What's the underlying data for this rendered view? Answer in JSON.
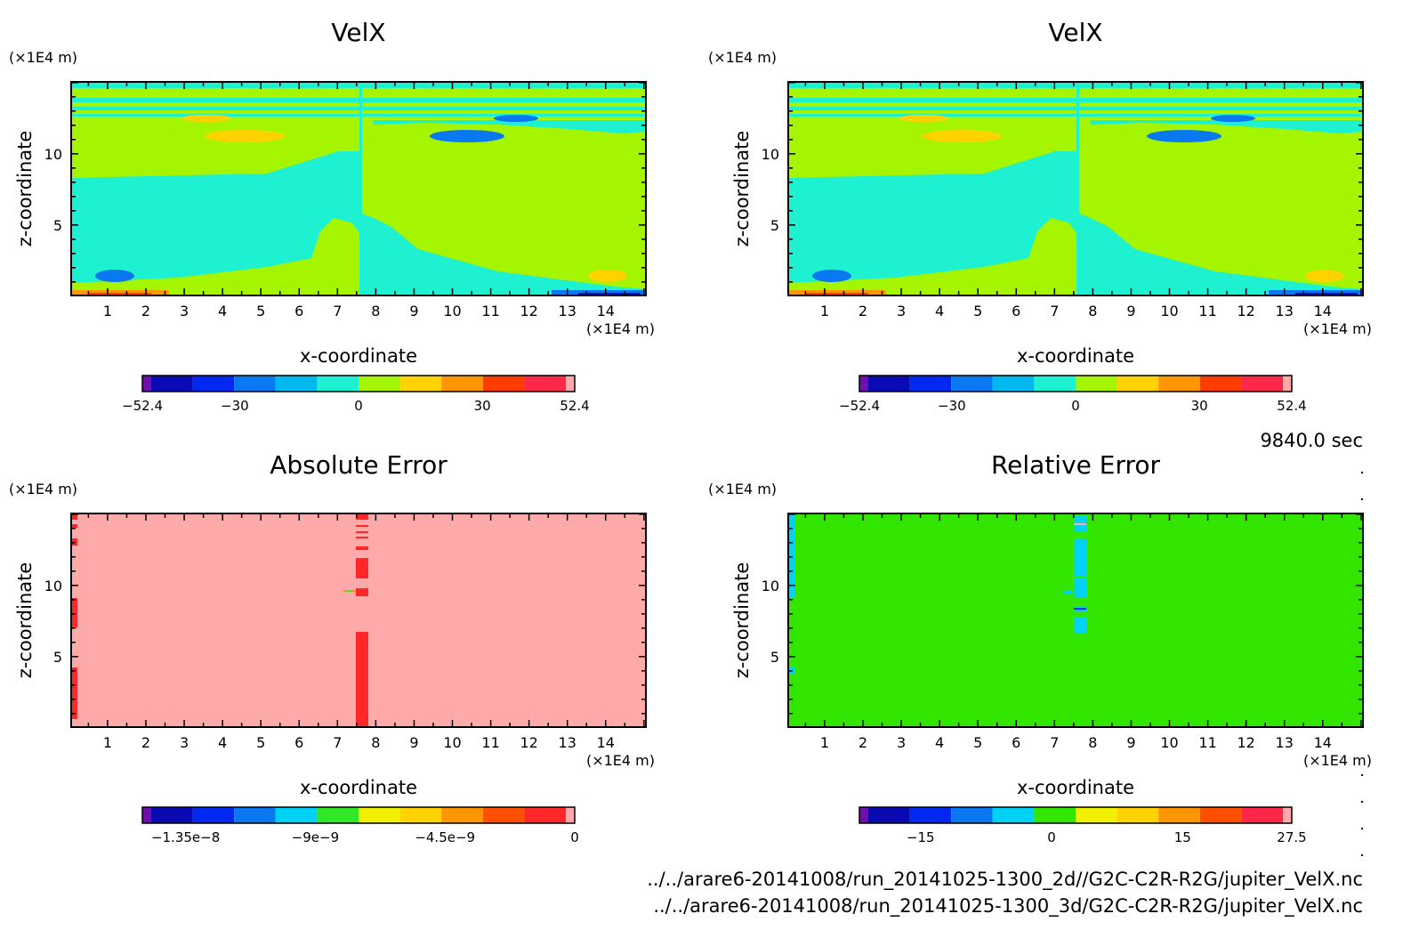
{
  "time_label": "9840.0 sec",
  "source_files": [
    "../../arare6-20141008/run_20141025-1300_2d//G2C-C2R-R2G/jupiter_VelX.nc",
    "../../arare6-20141008/run_20141025-1300_3d/G2C-C2R-R2G/jupiter_VelX.nc"
  ],
  "colors": {
    "velx_levels": [
      "#6f0fb0",
      "#0a0ab4",
      "#0028f0",
      "#0a78f0",
      "#00b8f0",
      "#1ef0d2",
      "#a5f500",
      "#ffd200",
      "#ff9600",
      "#ff3c00",
      "#ff2848",
      "#ffaaaa"
    ],
    "abs_err_levels": [
      "#6f0fb0",
      "#0a0ab4",
      "#0028f0",
      "#0a78f0",
      "#00d2f5",
      "#32e628",
      "#f0f000",
      "#ffd200",
      "#ff9600",
      "#ff5000",
      "#ff2828",
      "#ffaaaa"
    ],
    "rel_err_levels": [
      "#6f0fb0",
      "#0a0ab4",
      "#0028f0",
      "#0a78f0",
      "#00d2f5",
      "#32e600",
      "#f0f000",
      "#ffd200",
      "#ff9600",
      "#ff5000",
      "#ff2848",
      "#ffaaaa"
    ]
  },
  "chart_data": [
    {
      "type": "heatmap",
      "title": "VelX",
      "xlabel": "x-coordinate",
      "ylabel": "z-coordinate",
      "x_unit": "(×1E4 m)",
      "y_unit": "(×1E4 m)",
      "x_ticks": [
        "1",
        "2",
        "3",
        "4",
        "5",
        "6",
        "7",
        "8",
        "9",
        "10",
        "11",
        "12",
        "13",
        "14"
      ],
      "y_ticks": [
        "5",
        "10"
      ],
      "xlim": [
        0.05,
        15.05
      ],
      "ylim": [
        0.05,
        15.05
      ],
      "colorbar": {
        "ticks": [
          "−52.4",
          "−30",
          "0",
          "30",
          "52.4"
        ],
        "range": [
          -52.4,
          52.4
        ]
      },
      "fields": {
        "background": "#a5f500",
        "left_half": "#1ef0d2",
        "top_bands": "#1ef0d2"
      }
    },
    {
      "type": "heatmap",
      "title": "VelX",
      "xlabel": "x-coordinate",
      "ylabel": "z-coordinate",
      "x_unit": "(×1E4 m)",
      "y_unit": "(×1E4 m)",
      "x_ticks": [
        "1",
        "2",
        "3",
        "4",
        "5",
        "6",
        "7",
        "8",
        "9",
        "10",
        "11",
        "12",
        "13",
        "14"
      ],
      "y_ticks": [
        "5",
        "10"
      ],
      "xlim": [
        0.05,
        15.05
      ],
      "ylim": [
        0.05,
        15.05
      ],
      "colorbar": {
        "ticks": [
          "−52.4",
          "−30",
          "0",
          "30",
          "52.4"
        ],
        "range": [
          -52.4,
          52.4
        ]
      },
      "fields": {
        "background": "#a5f500",
        "left_half": "#1ef0d2",
        "top_bands": "#1ef0d2"
      }
    },
    {
      "type": "heatmap",
      "title": "Absolute Error",
      "xlabel": "x-coordinate",
      "ylabel": "z-coordinate",
      "x_unit": "(×1E4 m)",
      "y_unit": "(×1E4 m)",
      "x_ticks": [
        "1",
        "2",
        "3",
        "4",
        "5",
        "6",
        "7",
        "8",
        "9",
        "10",
        "11",
        "12",
        "13",
        "14"
      ],
      "y_ticks": [
        "5",
        "10"
      ],
      "xlim": [
        0.05,
        15.05
      ],
      "ylim": [
        0.05,
        15.05
      ],
      "colorbar": {
        "ticks": [
          "−1.35e−8",
          "−9e−9",
          "−4.5e−9",
          "0"
        ],
        "range": [
          -1.5e-08,
          0
        ]
      },
      "fields": {
        "background": "#ffaaaa",
        "column": "#ff2828"
      }
    },
    {
      "type": "heatmap",
      "title": "Relative Error",
      "xlabel": "x-coordinate",
      "ylabel": "z-coordinate",
      "x_unit": "(×1E4 m)",
      "y_unit": "(×1E4 m)",
      "x_ticks": [
        "1",
        "2",
        "3",
        "4",
        "5",
        "6",
        "7",
        "8",
        "9",
        "10",
        "11",
        "12",
        "13",
        "14"
      ],
      "y_ticks": [
        "5",
        "10"
      ],
      "xlim": [
        0.05,
        15.05
      ],
      "ylim": [
        0.05,
        15.05
      ],
      "colorbar": {
        "ticks": [
          "−15",
          "0",
          "15",
          "27.5"
        ],
        "range": [
          -22,
          27.5
        ]
      },
      "fields": {
        "background": "#32e600",
        "column": "#00d2f5"
      }
    }
  ]
}
